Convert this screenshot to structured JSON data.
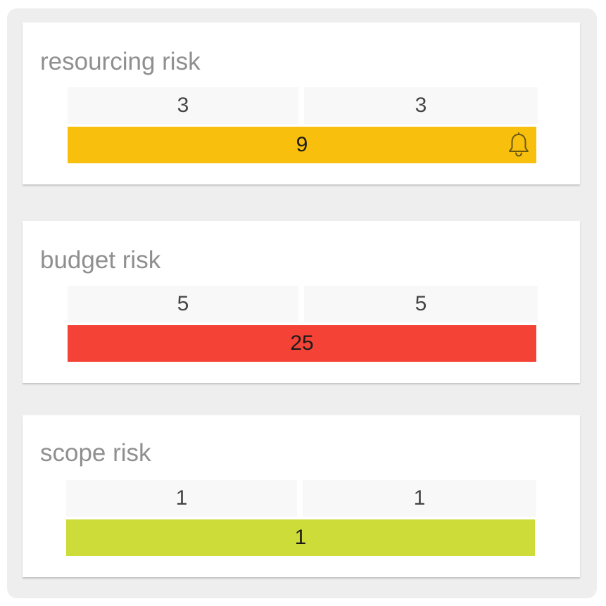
{
  "risks": [
    {
      "title": "resourcing risk",
      "factor_a": "3",
      "factor_b": "3",
      "score": "9",
      "level_color": "#f9bf0d",
      "alert_icon": "bell-icon"
    },
    {
      "title": "budget risk",
      "factor_a": "5",
      "factor_b": "5",
      "score": "25",
      "level_color": "#f44336"
    },
    {
      "title": "scope risk",
      "factor_a": "1",
      "factor_b": "1",
      "score": "1",
      "level_color": "#cddc39"
    }
  ]
}
